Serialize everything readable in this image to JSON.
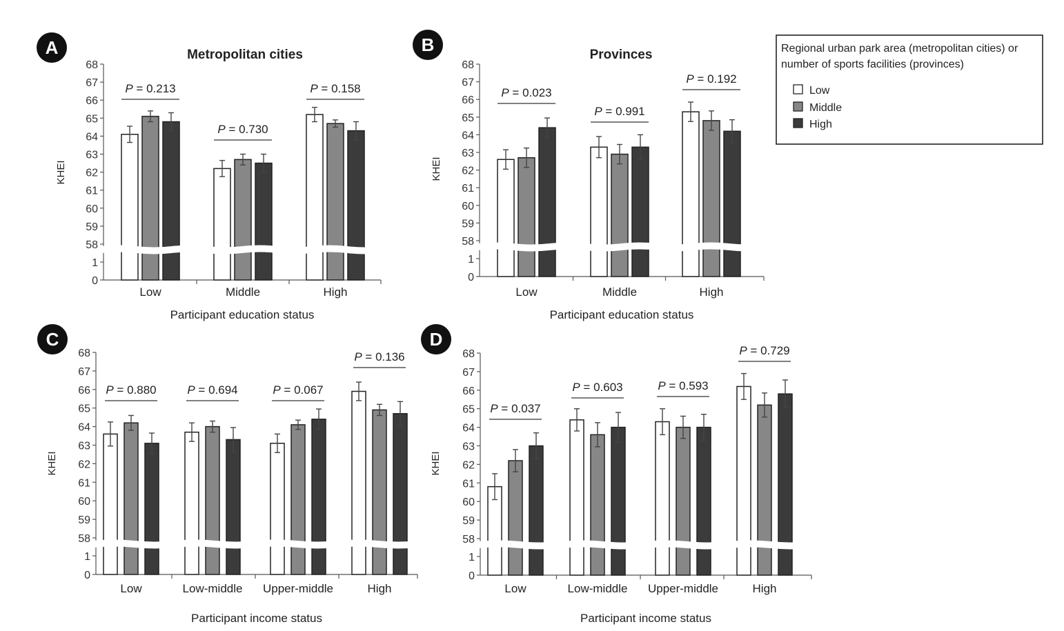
{
  "legend": {
    "title_line1": "Regional urban park area (metropolitan cities) or",
    "title_line2": "number of sports facilities (provinces)",
    "items": [
      {
        "label": "Low",
        "color": "#ffffff"
      },
      {
        "label": "Middle",
        "color": "#878787"
      },
      {
        "label": "High",
        "color": "#3b3b3b"
      }
    ]
  },
  "chart_data": [
    {
      "panel": "A",
      "type": "bar",
      "title": "Metropolitan cities",
      "xlabel": "Participant education status",
      "ylabel": "KHEI",
      "ylim": [
        58,
        68
      ],
      "axis_break": {
        "lower_ticks": [
          "0",
          "1"
        ]
      },
      "y_ticks": [
        "58",
        "59",
        "60",
        "61",
        "62",
        "63",
        "64",
        "65",
        "66",
        "67",
        "68"
      ],
      "categories": [
        "Low",
        "Middle",
        "High"
      ],
      "series": [
        {
          "name": "Low",
          "values": [
            64.1,
            62.2,
            65.2
          ],
          "errors": [
            0.45,
            0.45,
            0.4
          ]
        },
        {
          "name": "Middle",
          "values": [
            65.1,
            62.7,
            64.7
          ],
          "errors": [
            0.3,
            0.3,
            0.2
          ]
        },
        {
          "name": "High",
          "values": [
            64.8,
            62.5,
            64.3
          ],
          "errors": [
            0.5,
            0.5,
            0.5
          ]
        }
      ],
      "p_values": [
        "0.213",
        "0.730",
        "0.158"
      ]
    },
    {
      "panel": "B",
      "type": "bar",
      "title": "Provinces",
      "xlabel": "Participant education status",
      "ylabel": "KHEI",
      "ylim": [
        58,
        68
      ],
      "axis_break": {
        "lower_ticks": [
          "0",
          "1"
        ]
      },
      "y_ticks": [
        "58",
        "59",
        "60",
        "61",
        "62",
        "63",
        "64",
        "65",
        "66",
        "67",
        "68"
      ],
      "categories": [
        "Low",
        "Middle",
        "High"
      ],
      "series": [
        {
          "name": "Low",
          "values": [
            62.6,
            63.3,
            65.3
          ],
          "errors": [
            0.55,
            0.6,
            0.55
          ]
        },
        {
          "name": "Middle",
          "values": [
            62.7,
            62.9,
            64.8
          ],
          "errors": [
            0.55,
            0.55,
            0.55
          ]
        },
        {
          "name": "High",
          "values": [
            64.4,
            63.3,
            64.2
          ],
          "errors": [
            0.55,
            0.7,
            0.65
          ]
        }
      ],
      "p_values": [
        "0.023",
        "0.991",
        "0.192"
      ]
    },
    {
      "panel": "C",
      "type": "bar",
      "title": "",
      "xlabel": "Participant income status",
      "ylabel": "KHEI",
      "ylim": [
        58,
        68
      ],
      "axis_break": {
        "lower_ticks": [
          "0",
          "1"
        ]
      },
      "y_ticks": [
        "58",
        "59",
        "60",
        "61",
        "62",
        "63",
        "64",
        "65",
        "66",
        "67",
        "68"
      ],
      "categories": [
        "Low",
        "Low-middle",
        "Upper-middle",
        "High"
      ],
      "series": [
        {
          "name": "Low",
          "values": [
            63.6,
            63.7,
            63.1,
            65.9
          ],
          "errors": [
            0.65,
            0.5,
            0.5,
            0.5
          ]
        },
        {
          "name": "Middle",
          "values": [
            64.2,
            64.0,
            64.1,
            64.9
          ],
          "errors": [
            0.4,
            0.3,
            0.25,
            0.3
          ]
        },
        {
          "name": "High",
          "values": [
            63.1,
            63.3,
            64.4,
            64.7
          ],
          "errors": [
            0.55,
            0.65,
            0.55,
            0.65
          ]
        }
      ],
      "p_values": [
        "0.880",
        "0.694",
        "0.067",
        "0.136"
      ]
    },
    {
      "panel": "D",
      "type": "bar",
      "title": "",
      "xlabel": "Participant income status",
      "ylabel": "KHEI",
      "ylim": [
        58,
        68
      ],
      "axis_break": {
        "lower_ticks": [
          "0",
          "1"
        ]
      },
      "y_ticks": [
        "58",
        "59",
        "60",
        "61",
        "62",
        "63",
        "64",
        "65",
        "66",
        "67",
        "68"
      ],
      "categories": [
        "Low",
        "Low-middle",
        "Upper-middle",
        "High"
      ],
      "series": [
        {
          "name": "Low",
          "values": [
            60.8,
            64.4,
            64.3,
            66.2
          ],
          "errors": [
            0.7,
            0.6,
            0.7,
            0.7
          ]
        },
        {
          "name": "Middle",
          "values": [
            62.2,
            63.6,
            64.0,
            65.2
          ],
          "errors": [
            0.6,
            0.65,
            0.6,
            0.65
          ]
        },
        {
          "name": "High",
          "values": [
            63.0,
            64.0,
            64.0,
            65.8
          ],
          "errors": [
            0.7,
            0.8,
            0.7,
            0.75
          ]
        }
      ],
      "p_values": [
        "0.037",
        "0.603",
        "0.593",
        "0.729"
      ]
    }
  ]
}
